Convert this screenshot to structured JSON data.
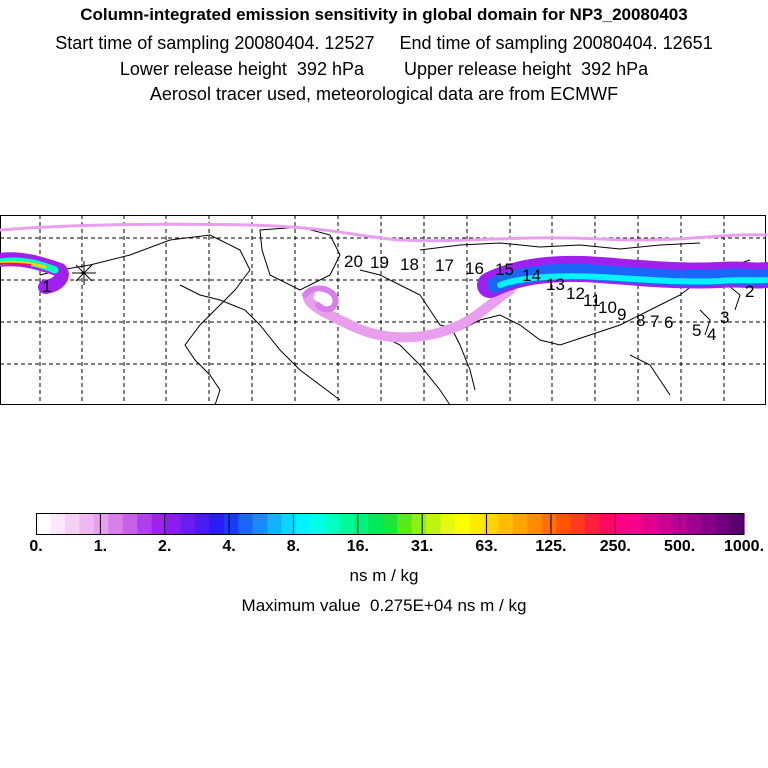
{
  "header": {
    "title": "Column-integrated emission sensitivity in global domain for NP3_20080403",
    "sampling_line": "Start time of sampling 20080404. 12527     End time of sampling 20080404. 12651",
    "release_line": "Lower release height  392 hPa        Upper release height  392 hPa",
    "info_line": "Aerosol tracer used, meteorological data are from ECMWF"
  },
  "map": {
    "track_labels": [
      "20",
      "19",
      "18",
      "17",
      "16",
      "15",
      "14",
      "13",
      "12",
      "11",
      "10",
      "9",
      "8",
      "7",
      "6",
      "5",
      "4",
      "3",
      "2",
      "1"
    ]
  },
  "colorbar": {
    "tick_labels": [
      "0.",
      "1.",
      "2.",
      "4.",
      "8.",
      "16.",
      "31.",
      "63.",
      "125.",
      "250.",
      "500.",
      "1000."
    ],
    "colors": [
      "#ffffff",
      "#fbe8fb",
      "#f6d1f6",
      "#f0b8f2",
      "#e8a0ee",
      "#d880ea",
      "#c860ea",
      "#b040ee",
      "#a020f0",
      "#8a1cf2",
      "#6a1cf2",
      "#4a1cf2",
      "#2a1cf4",
      "#1a3cf6",
      "#1a66f8",
      "#1a8cfa",
      "#10b4fc",
      "#08d6fe",
      "#00f4ff",
      "#00ffe4",
      "#00ffc0",
      "#00fa9a",
      "#00f07a",
      "#00e85a",
      "#1ae63a",
      "#5aea1a",
      "#90f010",
      "#c0f410",
      "#e4fa10",
      "#ffff00",
      "#ffea00",
      "#ffd400",
      "#ffbc00",
      "#ffa400",
      "#ff8c00",
      "#ff7000",
      "#ff5400",
      "#ff3a20",
      "#ff2040",
      "#ff0a60",
      "#ff0080",
      "#f4008c",
      "#e00090",
      "#cc0094",
      "#b80094",
      "#a00090",
      "#88008a",
      "#700080",
      "#580070"
    ]
  },
  "units": "ns m / kg",
  "max_line": "Maximum value  0.275E+04 ns m / kg"
}
